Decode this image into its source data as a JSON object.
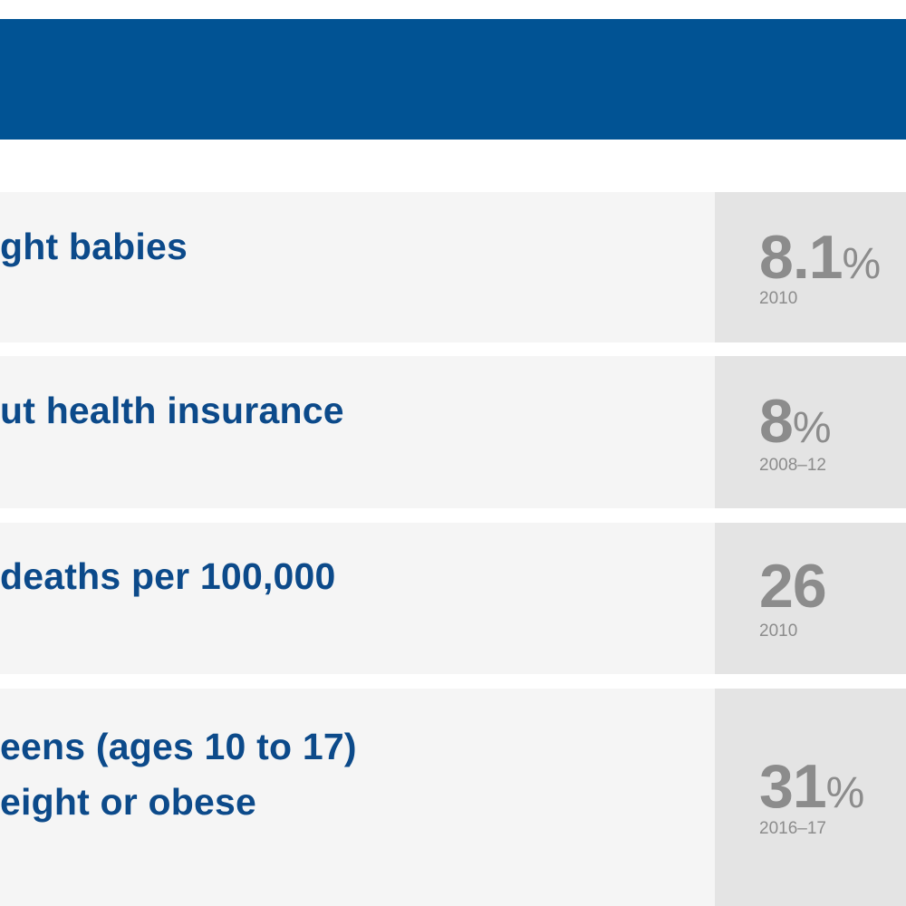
{
  "header": {
    "color": "#015394"
  },
  "colors": {
    "label_text": "#0c4a8a",
    "stat_text": "#8c8c8c",
    "row_bg": "#f5f5f5",
    "stat_bg": "#e4e4e4"
  },
  "rows": [
    {
      "label_lines": [
        "ght babies"
      ],
      "value": "8.1",
      "unit": "%",
      "year": "2010"
    },
    {
      "label_lines": [
        "ut health insurance"
      ],
      "value": "8",
      "unit": "%",
      "year": "2008–12"
    },
    {
      "label_lines": [
        " deaths per 100,000"
      ],
      "value": "26",
      "unit": "",
      "year": "2010"
    },
    {
      "label_lines": [
        "eens (ages 10 to 17)",
        "eight or obese"
      ],
      "value": "31",
      "unit": "%",
      "year": "2016–17"
    }
  ]
}
